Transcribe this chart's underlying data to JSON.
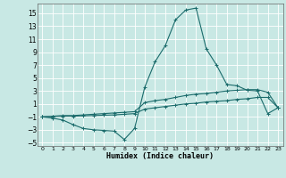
{
  "title": "",
  "xlabel": "Humidex (Indice chaleur)",
  "background_color": "#c8e8e4",
  "grid_color": "#ffffff",
  "line_color": "#1a6b6b",
  "xlim": [
    -0.5,
    23.5
  ],
  "ylim": [
    -5.5,
    16.5
  ],
  "yticks": [
    -5,
    -3,
    -1,
    1,
    3,
    5,
    7,
    9,
    11,
    13,
    15
  ],
  "xticks": [
    0,
    1,
    2,
    3,
    4,
    5,
    6,
    7,
    8,
    9,
    10,
    11,
    12,
    13,
    14,
    15,
    16,
    17,
    18,
    19,
    20,
    21,
    22,
    23
  ],
  "series": {
    "main": {
      "x": [
        0,
        1,
        2,
        3,
        4,
        5,
        6,
        7,
        8,
        9,
        10,
        11,
        12,
        13,
        14,
        15,
        16,
        17,
        18,
        19,
        20,
        21,
        22,
        23
      ],
      "y": [
        -1,
        -1.2,
        -1.5,
        -2.2,
        -2.8,
        -3.0,
        -3.1,
        -3.2,
        -4.5,
        -2.8,
        3.6,
        7.5,
        10,
        14,
        15.5,
        15.8,
        9.5,
        7,
        4,
        3.8,
        3.1,
        3.0,
        -0.5,
        0.4
      ]
    },
    "upper": {
      "x": [
        0,
        1,
        2,
        3,
        4,
        5,
        6,
        7,
        8,
        9,
        10,
        11,
        12,
        13,
        14,
        15,
        16,
        17,
        18,
        19,
        20,
        21,
        22,
        23
      ],
      "y": [
        -1,
        -0.9,
        -0.8,
        -0.8,
        -0.7,
        -0.6,
        -0.5,
        -0.4,
        -0.3,
        -0.2,
        1.2,
        1.5,
        1.7,
        2.0,
        2.3,
        2.5,
        2.6,
        2.8,
        3.0,
        3.1,
        3.2,
        3.2,
        2.8,
        0.4
      ]
    },
    "lower": {
      "x": [
        0,
        1,
        2,
        3,
        4,
        5,
        6,
        7,
        8,
        9,
        10,
        11,
        12,
        13,
        14,
        15,
        16,
        17,
        18,
        19,
        20,
        21,
        22,
        23
      ],
      "y": [
        -1,
        -0.95,
        -0.9,
        -0.9,
        -0.85,
        -0.8,
        -0.75,
        -0.7,
        -0.6,
        -0.5,
        0.2,
        0.4,
        0.6,
        0.8,
        1.0,
        1.1,
        1.3,
        1.4,
        1.5,
        1.7,
        1.8,
        2.0,
        2.0,
        0.4
      ]
    }
  }
}
